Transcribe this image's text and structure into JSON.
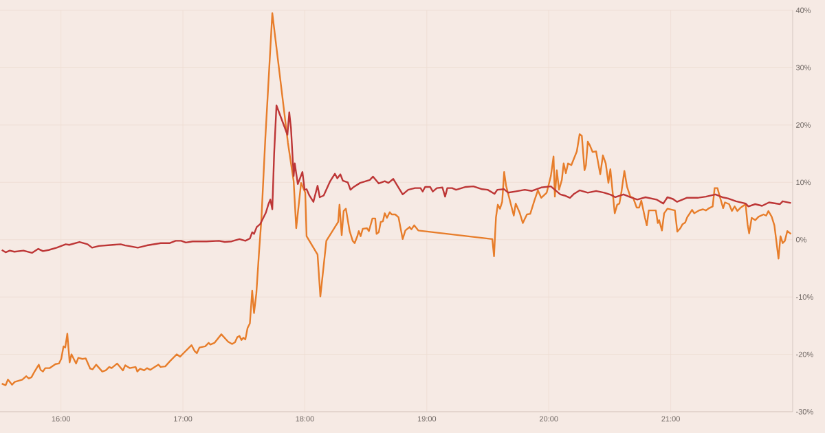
{
  "chart_data": {
    "type": "line",
    "xlim": [
      15.5,
      22.0
    ],
    "ylim": [
      -30,
      40
    ],
    "xticks": [
      {
        "value": 16,
        "label": "16:00"
      },
      {
        "value": 17,
        "label": "17:00"
      },
      {
        "value": 18,
        "label": "18:00"
      },
      {
        "value": 19,
        "label": "19:00"
      },
      {
        "value": 20,
        "label": "20:00"
      },
      {
        "value": 21,
        "label": "21:00"
      }
    ],
    "yticks": [
      {
        "value": -30,
        "label": "-30%"
      },
      {
        "value": -20,
        "label": "-20%"
      },
      {
        "value": -10,
        "label": "-10%"
      },
      {
        "value": 0,
        "label": "0%"
      },
      {
        "value": 10,
        "label": "10%"
      },
      {
        "value": 20,
        "label": "20%"
      },
      {
        "value": 30,
        "label": "30%"
      },
      {
        "value": 40,
        "label": "40%"
      }
    ],
    "grid": true,
    "series": [
      {
        "color": "#e77d2a",
        "x": [
          15.515,
          15.546,
          15.565,
          15.599,
          15.621,
          15.683,
          15.715,
          15.736,
          15.758,
          15.786,
          15.818,
          15.833,
          15.852,
          15.871,
          15.908,
          15.955,
          15.983,
          16.002,
          16.021,
          16.035,
          16.052,
          16.071,
          16.086,
          16.124,
          16.142,
          16.176,
          16.203,
          16.24,
          16.26,
          16.289,
          16.339,
          16.367,
          16.396,
          16.415,
          16.461,
          16.508,
          16.527,
          16.564,
          16.612,
          16.626,
          16.649,
          16.682,
          16.705,
          16.733,
          16.799,
          16.817,
          16.855,
          16.893,
          16.949,
          16.977,
          17.014,
          17.071,
          17.095,
          17.114,
          17.136,
          17.183,
          17.211,
          17.225,
          17.258,
          17.315,
          17.371,
          17.403,
          17.427,
          17.446,
          17.464,
          17.48,
          17.496,
          17.512,
          17.53,
          17.549,
          17.568,
          17.583,
          17.602,
          17.624,
          17.643,
          17.676,
          17.733,
          17.861,
          17.908,
          17.929,
          17.969,
          18.003,
          18.014,
          18.104,
          18.127,
          18.176,
          18.273,
          18.284,
          18.302,
          18.318,
          18.336,
          18.367,
          18.392,
          18.408,
          18.43,
          18.442,
          18.457,
          18.475,
          18.509,
          18.525,
          18.554,
          18.577,
          18.588,
          18.606,
          18.622,
          18.64,
          18.655,
          18.673,
          18.696,
          18.712,
          18.741,
          18.768,
          18.802,
          18.824,
          18.858,
          18.874,
          18.896,
          18.93,
          19.537,
          19.551,
          19.567,
          19.582,
          19.6,
          19.618,
          19.634,
          19.65,
          19.679,
          19.713,
          19.729,
          19.763,
          19.787,
          19.821,
          19.848,
          19.882,
          19.911,
          19.938,
          19.983,
          20.017,
          20.039,
          20.05,
          20.066,
          20.084,
          20.107,
          20.122,
          20.14,
          20.158,
          20.185,
          20.23,
          20.253,
          20.271,
          20.293,
          20.305,
          20.32,
          20.338,
          20.359,
          20.388,
          20.422,
          20.444,
          20.467,
          20.489,
          20.505,
          20.541,
          20.561,
          20.579,
          20.595,
          20.62,
          20.642,
          20.669,
          20.692,
          20.721,
          20.741,
          20.759,
          20.788,
          20.804,
          20.82,
          20.878,
          20.894,
          20.905,
          20.928,
          20.946,
          20.973,
          21.034,
          21.054,
          21.079,
          21.097,
          21.119,
          21.135,
          21.175,
          21.193,
          21.232,
          21.265,
          21.288,
          21.315,
          21.344,
          21.36,
          21.383,
          21.4,
          21.43,
          21.445,
          21.479,
          21.502,
          21.524,
          21.547,
          21.569,
          21.614,
          21.63,
          21.643,
          21.664,
          21.693,
          21.72,
          21.761,
          21.783,
          21.801,
          21.828,
          21.85,
          21.884,
          21.9,
          21.918,
          21.936,
          21.956,
          21.986
        ],
        "values": [
          -25.1,
          -25.4,
          -24.4,
          -25.3,
          -24.8,
          -24.4,
          -23.8,
          -24.2,
          -24.0,
          -22.9,
          -21.8,
          -22.7,
          -23.0,
          -22.4,
          -22.4,
          -21.7,
          -21.6,
          -20.8,
          -18.6,
          -18.8,
          -16.4,
          -21.4,
          -20.0,
          -21.6,
          -20.6,
          -20.8,
          -20.7,
          -22.5,
          -22.6,
          -21.8,
          -23.0,
          -22.8,
          -22.2,
          -22.4,
          -21.6,
          -22.8,
          -21.9,
          -22.4,
          -22.2,
          -23.0,
          -22.5,
          -22.8,
          -22.4,
          -22.7,
          -21.8,
          -22.2,
          -22.1,
          -21.2,
          -20.0,
          -20.4,
          -19.6,
          -18.4,
          -19.4,
          -19.8,
          -18.8,
          -18.6,
          -18.0,
          -18.3,
          -18.0,
          -16.5,
          -17.8,
          -18.2,
          -17.9,
          -17.0,
          -16.8,
          -17.5,
          -17.1,
          -17.4,
          -15.4,
          -14.6,
          -8.9,
          -12.8,
          -9.4,
          -2.2,
          3.4,
          17.8,
          39.5,
          16.9,
          10.2,
          2.0,
          9.9,
          8.2,
          0.6,
          -2.6,
          -9.9,
          -0.2,
          3.1,
          6.1,
          0.8,
          5.0,
          5.4,
          1.5,
          -0.2,
          -0.6,
          0.6,
          1.5,
          0.6,
          1.9,
          2.0,
          1.5,
          3.7,
          3.7,
          1.0,
          1.3,
          3.1,
          3.2,
          4.6,
          3.8,
          4.8,
          4.4,
          4.4,
          3.9,
          0.1,
          1.6,
          2.2,
          1.8,
          2.5,
          1.6,
          0.1,
          -2.9,
          3.9,
          6.1,
          5.4,
          6.6,
          11.8,
          9.4,
          7.0,
          4.2,
          6.3,
          4.6,
          2.9,
          4.4,
          4.5,
          6.8,
          8.6,
          7.3,
          8.2,
          11.1,
          14.5,
          7.5,
          12.1,
          8.7,
          10.4,
          13.3,
          11.6,
          13.3,
          13.0,
          15.4,
          18.4,
          18.1,
          12.1,
          13.0,
          17.1,
          16.4,
          15.3,
          15.4,
          11.4,
          14.7,
          13.3,
          9.9,
          12.3,
          4.6,
          6.1,
          6.3,
          8.2,
          12.0,
          9.2,
          7.5,
          7.3,
          5.6,
          5.6,
          6.8,
          3.9,
          2.5,
          5.1,
          5.1,
          2.9,
          3.4,
          1.6,
          4.6,
          5.4,
          5.1,
          1.4,
          2.0,
          2.7,
          3.0,
          3.9,
          5.2,
          4.6,
          5.1,
          5.3,
          5.1,
          5.5,
          5.8,
          9.0,
          9.0,
          7.7,
          5.5,
          6.5,
          6.2,
          5.0,
          5.8,
          5.0,
          5.5,
          6.2,
          2.7,
          1.1,
          3.8,
          3.4,
          4.0,
          4.4,
          4.2,
          5.0,
          4.0,
          2.5,
          -3.3,
          0.6,
          -0.6,
          -0.2,
          1.5,
          1.0
        ]
      },
      {
        "color": "#bd3636",
        "x": [
          15.515,
          15.546,
          15.58,
          15.618,
          15.692,
          15.762,
          15.814,
          15.852,
          15.899,
          15.965,
          16.039,
          16.068,
          16.152,
          16.218,
          16.255,
          16.311,
          16.424,
          16.49,
          16.527,
          16.555,
          16.63,
          16.705,
          16.818,
          16.893,
          16.94,
          16.986,
          17.024,
          17.08,
          17.193,
          17.296,
          17.343,
          17.399,
          17.464,
          17.512,
          17.549,
          17.568,
          17.583,
          17.605,
          17.633,
          17.68,
          17.703,
          17.717,
          17.733,
          17.748,
          17.767,
          17.857,
          17.872,
          17.886,
          17.908,
          17.917,
          17.942,
          17.98,
          17.998,
          18.014,
          18.037,
          18.07,
          18.104,
          18.122,
          18.154,
          18.205,
          18.246,
          18.266,
          18.291,
          18.311,
          18.352,
          18.374,
          18.401,
          18.453,
          18.532,
          18.559,
          18.606,
          18.655,
          18.685,
          18.725,
          18.802,
          18.847,
          18.903,
          18.948,
          18.966,
          18.986,
          19.027,
          19.049,
          19.083,
          19.128,
          19.15,
          19.168,
          19.207,
          19.24,
          19.319,
          19.382,
          19.454,
          19.499,
          19.555,
          19.578,
          19.634,
          19.668,
          19.724,
          19.803,
          19.859,
          19.938,
          20.017,
          20.05,
          20.095,
          20.129,
          20.174,
          20.208,
          20.253,
          20.32,
          20.388,
          20.455,
          20.512,
          20.545,
          20.613,
          20.669,
          20.726,
          20.793,
          20.883,
          20.939,
          20.973,
          21.018,
          21.052,
          21.131,
          21.221,
          21.288,
          21.367,
          21.423,
          21.468,
          21.536,
          21.614,
          21.637,
          21.693,
          21.749,
          21.806,
          21.896,
          21.918,
          21.986
        ],
        "values": [
          -1.8,
          -2.2,
          -1.9,
          -2.1,
          -1.9,
          -2.3,
          -1.6,
          -2.0,
          -1.8,
          -1.4,
          -0.8,
          -0.9,
          -0.4,
          -0.8,
          -1.4,
          -1.1,
          -0.9,
          -0.8,
          -1.0,
          -1.1,
          -1.4,
          -1.0,
          -0.6,
          -0.6,
          -0.2,
          -0.2,
          -0.5,
          -0.3,
          -0.3,
          -0.2,
          -0.4,
          -0.3,
          0.1,
          -0.2,
          0.2,
          1.3,
          1.0,
          2.2,
          2.7,
          4.7,
          6.3,
          7.0,
          5.3,
          15.0,
          23.4,
          18.3,
          22.2,
          19.5,
          11.1,
          13.3,
          9.7,
          11.8,
          8.7,
          8.8,
          7.7,
          6.6,
          9.4,
          7.4,
          7.7,
          10.1,
          11.5,
          10.7,
          11.4,
          10.3,
          10.0,
          8.7,
          9.2,
          9.9,
          10.4,
          11.0,
          9.8,
          10.2,
          9.9,
          10.6,
          7.9,
          8.7,
          9.0,
          9.0,
          8.4,
          9.2,
          9.2,
          8.4,
          9.0,
          9.1,
          7.5,
          9.0,
          9.0,
          8.7,
          9.2,
          9.3,
          8.8,
          8.7,
          8.0,
          8.7,
          8.8,
          8.2,
          8.4,
          8.7,
          8.5,
          9.1,
          9.3,
          8.7,
          7.9,
          7.7,
          7.3,
          8.0,
          8.6,
          8.2,
          8.5,
          8.2,
          7.8,
          7.4,
          7.9,
          7.4,
          7.0,
          7.4,
          7.0,
          6.3,
          7.4,
          7.1,
          6.6,
          7.3,
          7.3,
          7.5,
          7.9,
          7.4,
          7.2,
          6.7,
          6.3,
          5.8,
          6.2,
          5.9,
          6.5,
          6.2,
          6.7,
          6.4
        ]
      }
    ]
  }
}
